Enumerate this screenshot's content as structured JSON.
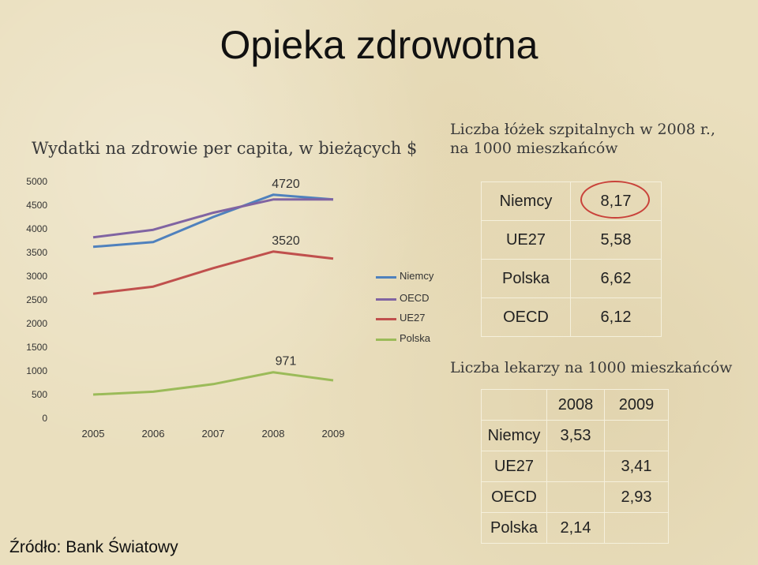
{
  "slide_title": "Opieka zdrowotna",
  "source": "Źródło: Bank Światowy",
  "chart_data": {
    "type": "line",
    "title": "Wydatki na zdrowie per capita, w bieżących $",
    "x": [
      "2005",
      "2006",
      "2007",
      "2008",
      "2009"
    ],
    "ylim": [
      0,
      5000
    ],
    "yticks": [
      "0",
      "500",
      "1000",
      "1500",
      "2000",
      "2500",
      "3000",
      "3500",
      "4000",
      "4500",
      "5000"
    ],
    "grid": false,
    "legend_position": "right",
    "series": [
      {
        "name": "Niemcy",
        "color": "#4f81bd",
        "values": [
          3620,
          3720,
          4250,
          4720,
          4620
        ]
      },
      {
        "name": "OECD",
        "color": "#8064a2",
        "values": [
          3820,
          3980,
          4340,
          4620,
          4620
        ]
      },
      {
        "name": "UE27",
        "color": "#c0504d",
        "values": [
          2630,
          2780,
          3170,
          3520,
          3370
        ]
      },
      {
        "name": "Polska",
        "color": "#9bbb59",
        "values": [
          500,
          560,
          720,
          971,
          800
        ]
      }
    ],
    "annotations": [
      {
        "series": "Niemcy",
        "x": "2008",
        "label": "4720"
      },
      {
        "series": "UE27",
        "x": "2008",
        "label": "3520"
      },
      {
        "series": "Polska",
        "x": "2008",
        "label": "971"
      }
    ]
  },
  "beds": {
    "title_line1": "Liczba łóżek szpitalnych w 2008 r.,",
    "title_line2": "na 1000 mieszkańców",
    "rows": [
      {
        "country": "Niemcy",
        "value": "8,17"
      },
      {
        "country": "UE27",
        "value": "5,58"
      },
      {
        "country": "Polska",
        "value": "6,62"
      },
      {
        "country": "OECD",
        "value": "6,12"
      }
    ]
  },
  "doctors": {
    "title": "Liczba lekarzy na 1000 mieszkańców",
    "headers": [
      "",
      "2008",
      "2009"
    ],
    "rows": [
      {
        "country": "Niemcy",
        "v2008": "3,53",
        "v2009": ""
      },
      {
        "country": "UE27",
        "v2008": "",
        "v2009": "3,41"
      },
      {
        "country": "OECD",
        "v2008": "",
        "v2009": "2,93"
      },
      {
        "country": "Polska",
        "v2008": "2,14",
        "v2009": ""
      }
    ]
  }
}
